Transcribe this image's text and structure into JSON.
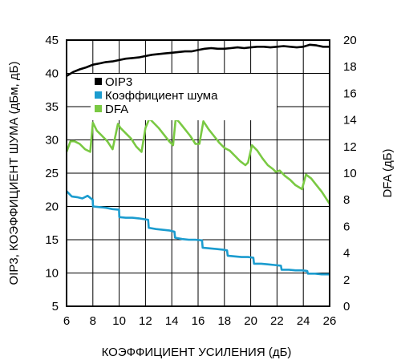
{
  "chart_data": {
    "type": "line",
    "xlabel": "КОЭФФИЦИЕНТ УСИЛЕНИЯ (дБ)",
    "ylabel": "OIP3, КОЭФФИЦИЕНТ ШУМА (дБм, дБ)",
    "y2label": "DFA (дБ)",
    "xlim": [
      6,
      26
    ],
    "ylim": [
      5,
      45
    ],
    "y2lim": [
      0,
      20
    ],
    "xticks": [
      6,
      8,
      10,
      12,
      14,
      16,
      18,
      20,
      22,
      24,
      26
    ],
    "yticks": [
      5,
      10,
      15,
      20,
      25,
      30,
      35,
      40,
      45
    ],
    "y2ticks": [
      0,
      2,
      4,
      6,
      8,
      10,
      12,
      14,
      16,
      18,
      20
    ],
    "grid": true,
    "legend_position": "top-left",
    "series": [
      {
        "name": "OIP3",
        "axis": "left",
        "color": "#000000",
        "x": [
          6,
          6.5,
          7,
          7.5,
          8,
          8.5,
          9,
          9.5,
          10,
          10.5,
          11,
          11.5,
          12,
          12.5,
          13,
          13.5,
          14,
          14.5,
          15,
          15.5,
          16,
          16.5,
          17,
          17.5,
          18,
          18.5,
          19,
          19.5,
          20,
          20.5,
          21,
          21.5,
          22,
          22.5,
          23,
          23.5,
          24,
          24.5,
          25,
          25.5,
          26
        ],
        "values": [
          39.6,
          40.2,
          40.6,
          40.9,
          41.3,
          41.5,
          41.7,
          41.8,
          42.0,
          42.2,
          42.3,
          42.4,
          42.6,
          42.8,
          42.9,
          43.0,
          43.1,
          43.2,
          43.3,
          43.3,
          43.5,
          43.7,
          43.8,
          43.7,
          43.7,
          43.8,
          43.9,
          43.8,
          43.9,
          44.0,
          44.0,
          43.9,
          44.0,
          44.1,
          44.0,
          43.9,
          44.0,
          44.3,
          44.2,
          44.0,
          44.0
        ]
      },
      {
        "name": "Коэффициент шума",
        "axis": "left",
        "color": "#1b9ccf",
        "x": [
          6,
          6.4,
          6.8,
          7.2,
          7.6,
          7.99,
          8.01,
          8.5,
          9,
          9.5,
          9.99,
          10.01,
          10.5,
          11,
          11.5,
          12.2,
          12.25,
          12.8,
          13.3,
          13.8,
          14.2,
          14.25,
          14.8,
          15.3,
          15.8,
          16.3,
          16.35,
          16.9,
          17.4,
          17.9,
          18.2,
          18.25,
          18.8,
          19.3,
          19.8,
          20.2,
          20.25,
          20.8,
          21.3,
          21.8,
          22.3,
          22.35,
          22.9,
          23.4,
          23.9,
          24.3,
          24.35,
          24.9,
          25.4,
          26
        ],
        "values": [
          22.3,
          21.5,
          21.4,
          21.2,
          21.6,
          21.0,
          20.0,
          19.9,
          19.8,
          19.6,
          19.5,
          18.4,
          18.3,
          18.3,
          18.2,
          18.0,
          16.8,
          16.6,
          16.5,
          16.4,
          16.2,
          15.3,
          15.1,
          15.0,
          15.0,
          14.9,
          13.8,
          13.7,
          13.6,
          13.5,
          13.4,
          12.6,
          12.5,
          12.4,
          12.4,
          12.3,
          11.4,
          11.4,
          11.3,
          11.2,
          11.1,
          10.5,
          10.5,
          10.4,
          10.4,
          10.3,
          9.9,
          9.9,
          9.8,
          9.8
        ]
      },
      {
        "name": "DFA",
        "axis": "right",
        "color": "#7ac943",
        "x": [
          6,
          6.3,
          6.6,
          7.0,
          7.4,
          7.8,
          8.0,
          8.3,
          8.7,
          9.1,
          9.5,
          9.9,
          10.1,
          10.5,
          10.9,
          11.3,
          11.7,
          12.0,
          12.3,
          12.6,
          13.0,
          13.4,
          13.8,
          14.1,
          14.3,
          14.6,
          15.0,
          15.4,
          15.8,
          16.1,
          16.4,
          16.8,
          17.2,
          17.6,
          18.0,
          18.4,
          18.8,
          19.2,
          19.6,
          19.8,
          20.1,
          20.5,
          20.9,
          21.3,
          21.7,
          21.9,
          22.2,
          22.6,
          23.0,
          23.4,
          23.9,
          24.2,
          24.6,
          25.0,
          25.4,
          25.8,
          26
        ],
        "values": [
          11.6,
          12.4,
          12.4,
          12.2,
          11.8,
          11.6,
          13.8,
          13.2,
          12.8,
          12.4,
          11.8,
          13.7,
          13.4,
          13.0,
          12.6,
          12.0,
          11.6,
          13.4,
          14.1,
          13.8,
          13.4,
          12.9,
          12.4,
          12.1,
          14.1,
          13.8,
          13.3,
          12.8,
          12.2,
          12.2,
          13.9,
          13.3,
          12.8,
          12.3,
          11.9,
          11.7,
          11.3,
          10.9,
          10.6,
          10.8,
          12.1,
          11.7,
          11.1,
          10.6,
          10.3,
          10.1,
          10.2,
          9.8,
          9.5,
          9.1,
          8.8,
          9.9,
          9.6,
          9.1,
          8.6,
          8.0,
          7.7
        ]
      }
    ]
  }
}
